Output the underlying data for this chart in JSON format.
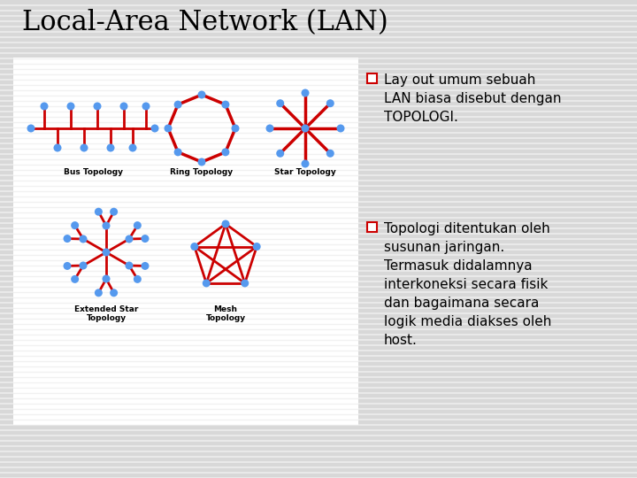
{
  "title": "Local-Area Network (LAN)",
  "title_fontsize": 22,
  "title_font": "serif",
  "bg_color": "#d8d8d8",
  "panel_bg": "#ffffff",
  "bullet1_text": "Lay out umum sebuah\nLAN biasa disebut dengan\nTOPOLOGI.",
  "bullet2_text": "Topologi ditentukan oleh\nsusunan jaringan.\nTermasuk didalamnya\ninterkoneksi secara fisik\ndan bagaimana secara\nlogik media diakses oleh\nhost.",
  "node_color": "#5599ee",
  "line_color": "#cc0000",
  "text_color": "#000000",
  "label_fontsize": 6.5,
  "bullet_fontsize": 11,
  "bullet_color": "#cc0000",
  "line_stripe_color": "#c8c8c8",
  "line_stripe_white": "#e8e8e8"
}
